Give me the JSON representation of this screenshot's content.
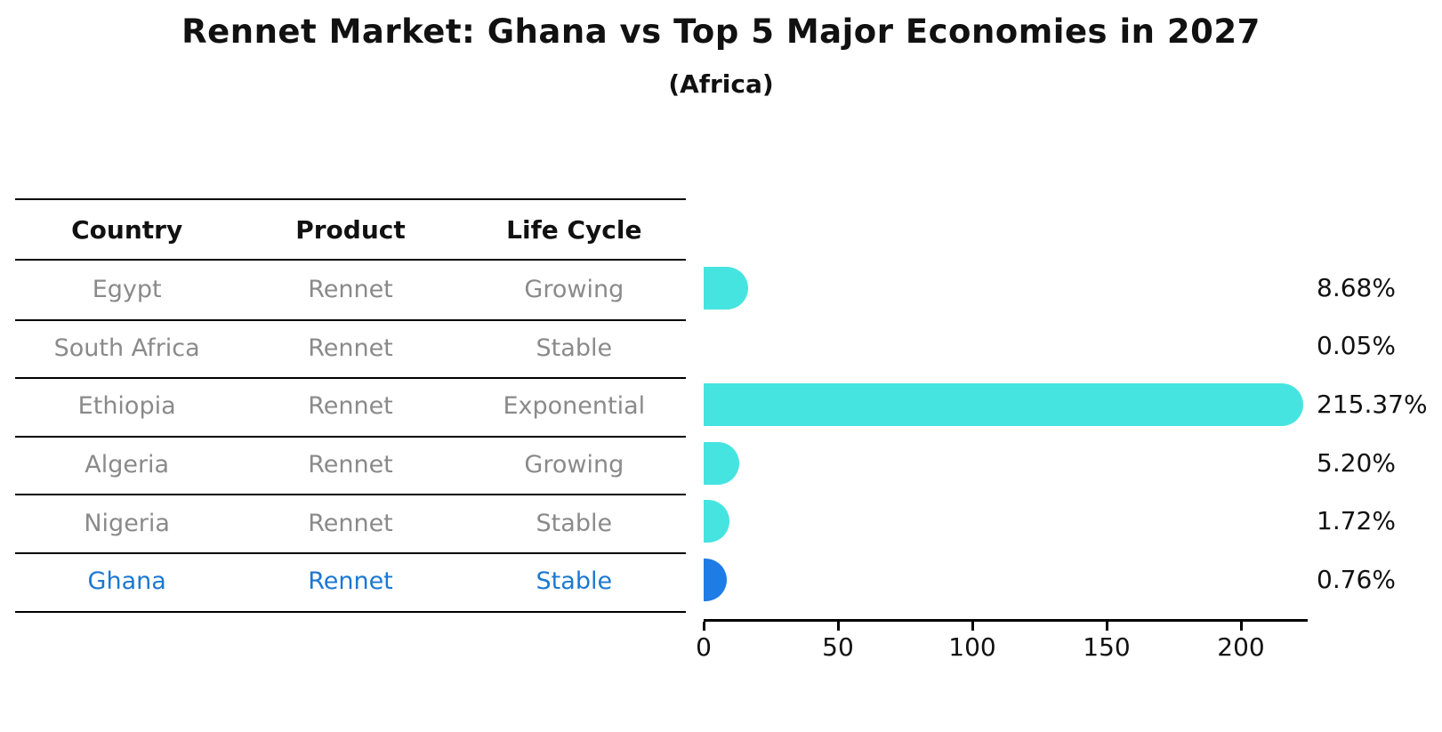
{
  "title": "Rennet Market: Ghana vs Top 5 Major Economies in 2027",
  "subtitle": "(Africa)",
  "colors": {
    "bar_default": "#46E4E0",
    "bar_highlight": "#1E7CE6",
    "row_text": "#8a8a8a",
    "highlight_text": "#1C78D2",
    "header_text": "#111111",
    "line": "#000000"
  },
  "table": {
    "columns": [
      "Country",
      "Product",
      "Life Cycle"
    ],
    "rows": [
      {
        "country": "Egypt",
        "product": "Rennet",
        "life_cycle": "Growing",
        "highlight": false
      },
      {
        "country": "South Africa",
        "product": "Rennet",
        "life_cycle": "Stable",
        "highlight": false
      },
      {
        "country": "Ethiopia",
        "product": "Rennet",
        "life_cycle": "Exponential",
        "highlight": false
      },
      {
        "country": "Algeria",
        "product": "Rennet",
        "life_cycle": "Growing",
        "highlight": false
      },
      {
        "country": "Nigeria",
        "product": "Rennet",
        "life_cycle": "Stable",
        "highlight": false
      },
      {
        "country": "Ghana",
        "product": "Rennet",
        "life_cycle": "Stable",
        "highlight": true
      }
    ]
  },
  "chart_data": {
    "type": "bar",
    "orientation": "horizontal",
    "title": "Rennet Market: Ghana vs Top 5 Major Economies in 2027",
    "subtitle": "(Africa)",
    "categories": [
      "Egypt",
      "South Africa",
      "Ethiopia",
      "Algeria",
      "Nigeria",
      "Ghana"
    ],
    "values": [
      8.68,
      0.05,
      215.37,
      5.2,
      1.72,
      0.76
    ],
    "value_labels": [
      "8.68%",
      "0.05%",
      "215.37%",
      "5.20%",
      "1.72%",
      "0.76%"
    ],
    "highlight_category": "Ghana",
    "xlabel": "",
    "ylabel": "",
    "x_ticks": [
      0,
      50,
      100,
      150,
      200
    ],
    "xlim": [
      0,
      225
    ],
    "grid": false,
    "legend": false
  }
}
